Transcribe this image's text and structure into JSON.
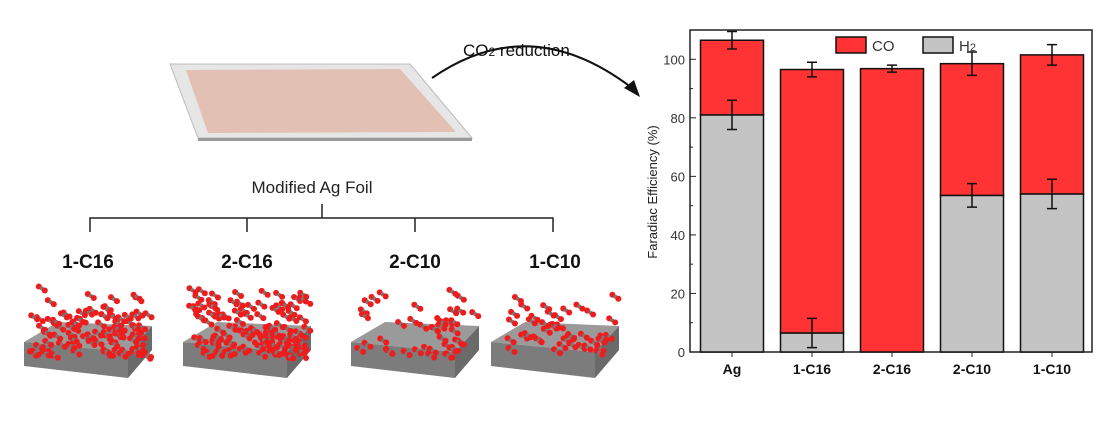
{
  "illustration": {
    "arrow_label_main": "CO",
    "arrow_label_sub": "2",
    "arrow_label_rest": " reduction",
    "foil_label": "Modified Ag Foil",
    "samples": [
      "1-C16",
      "2-C16",
      "2-C10",
      "1-C10"
    ],
    "colors": {
      "foil": "#e2c0b4",
      "slab": "#8a8a8a",
      "oxygen": "#ee1c1c"
    }
  },
  "chart_data": {
    "type": "bar",
    "stacked": true,
    "categories": [
      "Ag",
      "1-C16",
      "2-C16",
      "2-C10",
      "1-C10"
    ],
    "series": [
      {
        "name": "H2",
        "label_main": "H",
        "label_sub": "2",
        "color": "#c4c4c4",
        "values": [
          81,
          6.5,
          0,
          53.5,
          54
        ],
        "errors": [
          5,
          5,
          0,
          4,
          5
        ]
      },
      {
        "name": "CO",
        "label_main": "CO",
        "label_sub": "",
        "color": "#ff3333",
        "values": [
          25.5,
          90,
          96.8,
          45,
          47.5
        ],
        "total_errors": [
          3,
          2.5,
          1.2,
          4,
          3.5
        ]
      }
    ],
    "ylabel": "Faradiac Efficiency (%)",
    "xlabel": "",
    "ylim": [
      0,
      110
    ],
    "yticks": [
      0,
      20,
      40,
      60,
      80,
      100
    ],
    "grid": false,
    "legend": "top"
  }
}
